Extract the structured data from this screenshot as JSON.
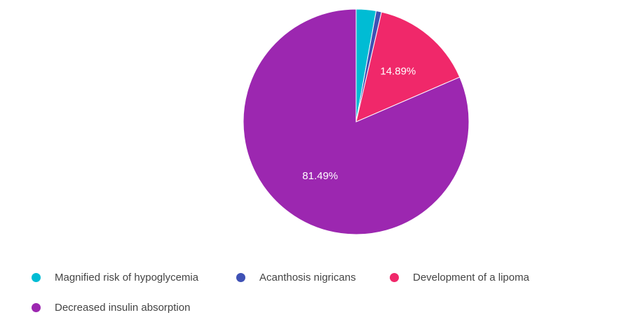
{
  "chart_data": {
    "type": "pie",
    "categories": [
      "Magnified risk of hypoglycemia",
      "Acanthosis nigricans",
      "Development of a lipoma",
      "Decreased insulin absorption"
    ],
    "values": [
      2.84,
      0.78,
      14.89,
      81.49
    ],
    "data_labels": [
      "",
      "",
      "14.89%",
      "81.49%"
    ],
    "colors": [
      "#00bcd4",
      "#3f51b5",
      "#f0286a",
      "#9c27b0"
    ],
    "start_angle": "12 o'clock",
    "direction": "clockwise",
    "legend_position": "bottom-left"
  }
}
